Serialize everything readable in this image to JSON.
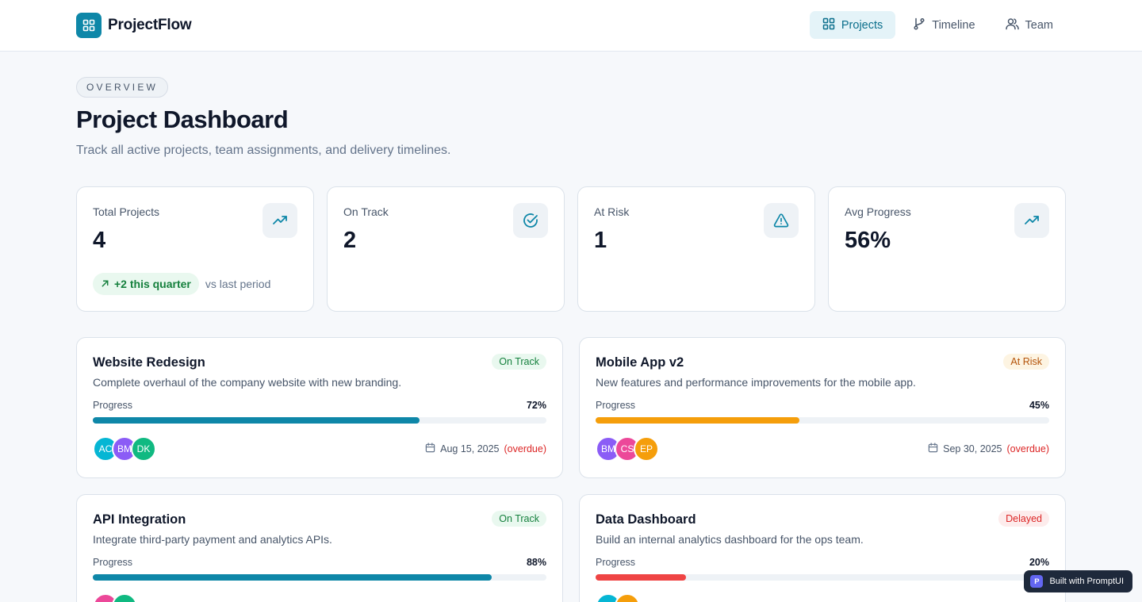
{
  "brand": {
    "name": "ProjectFlow",
    "icon": "grid-icon"
  },
  "nav": [
    {
      "label": "Projects",
      "icon": "grid-icon",
      "active": true
    },
    {
      "label": "Timeline",
      "icon": "git-branch-icon",
      "active": false
    },
    {
      "label": "Team",
      "icon": "users-icon",
      "active": false
    }
  ],
  "header": {
    "eyebrow": "OVERVIEW",
    "title": "Project Dashboard",
    "subtitle": "Track all active projects, team assignments, and delivery timelines."
  },
  "stats": [
    {
      "label": "Total Projects",
      "value": "4",
      "icon": "trending-up-icon",
      "trend": "+2 this quarter",
      "trend_note": "vs last period"
    },
    {
      "label": "On Track",
      "value": "2",
      "icon": "check-circle-icon"
    },
    {
      "label": "At Risk",
      "value": "1",
      "icon": "alert-triangle-icon"
    },
    {
      "label": "Avg Progress",
      "value": "56%",
      "icon": "trending-up-icon"
    }
  ],
  "progress_label": "Progress",
  "projects": [
    {
      "name": "Website Redesign",
      "description": "Complete overhaul of the company website with new branding.",
      "status": "On Track",
      "progress_text": "72%",
      "progress": 0.72,
      "bar_color": "#0e87a8",
      "team": [
        {
          "initials": "AC",
          "color": "#06b6d4"
        },
        {
          "initials": "BM",
          "color": "#8b5cf6"
        },
        {
          "initials": "DK",
          "color": "#10b981"
        }
      ],
      "due": "Aug 15, 2025",
      "due_flag": "(overdue)"
    },
    {
      "name": "Mobile App v2",
      "description": "New features and performance improvements for the mobile app.",
      "status": "At Risk",
      "progress_text": "45%",
      "progress": 0.45,
      "bar_color": "#f59e0b",
      "team": [
        {
          "initials": "BM",
          "color": "#8b5cf6"
        },
        {
          "initials": "CS",
          "color": "#ec4899"
        },
        {
          "initials": "EP",
          "color": "#f59e0b"
        }
      ],
      "due": "Sep 30, 2025",
      "due_flag": "(overdue)"
    },
    {
      "name": "API Integration",
      "description": "Integrate third-party payment and analytics APIs.",
      "status": "On Track",
      "progress_text": "88%",
      "progress": 0.88,
      "bar_color": "#0e87a8",
      "team": [
        {
          "initials": "",
          "color": "#ec4899"
        },
        {
          "initials": "",
          "color": "#10b981"
        }
      ]
    },
    {
      "name": "Data Dashboard",
      "description": "Build an internal analytics dashboard for the ops team.",
      "status": "Delayed",
      "progress_text": "20%",
      "progress": 0.2,
      "bar_color": "#ef4444",
      "team": [
        {
          "initials": "",
          "color": "#06b6d4"
        },
        {
          "initials": "",
          "color": "#f59e0b"
        }
      ]
    }
  ],
  "promo": {
    "logo": "P",
    "label": "Built with PromptUI"
  }
}
